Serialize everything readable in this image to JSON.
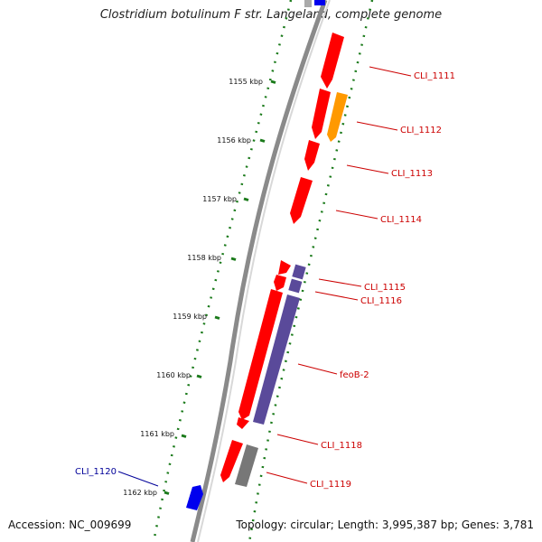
{
  "title": "Clostridium botulinum F str. Langeland, complete genome",
  "footer": {
    "accession": "Accession: NC_009699",
    "stats": "Topology: circular; Length: 3,995,387 bp; Genes: 3,781"
  },
  "colors": {
    "backbone": "#8a8a8a",
    "tick": "#1a7a1a",
    "forward_gene": "#ff0000",
    "orange_gene": "#ff9900",
    "purple_gene": "#5a4a9a",
    "gray_gene": "#777777",
    "blue_gene": "#0000ee",
    "label_red": "#cc0000",
    "label_blue": "#000099"
  },
  "kbp_markers": [
    {
      "label": "1155 kbp"
    },
    {
      "label": "1156 kbp"
    },
    {
      "label": "1157 kbp"
    },
    {
      "label": "1158 kbp"
    },
    {
      "label": "1159 kbp"
    },
    {
      "label": "1160 kbp"
    },
    {
      "label": "1161 kbp"
    },
    {
      "label": "1162 kbp"
    }
  ],
  "genes": [
    {
      "label": "CLI_1111",
      "color": "red"
    },
    {
      "label": "CLI_1112",
      "color": "orange"
    },
    {
      "label": "CLI_1113",
      "color": "red"
    },
    {
      "label": "CLI_1114",
      "color": "red"
    },
    {
      "label": "CLI_1115",
      "color": "purple"
    },
    {
      "label": "CLI_1116",
      "color": "purple"
    },
    {
      "label": "feoB-2",
      "color": "purple"
    },
    {
      "label": "CLI_1118",
      "color": "red"
    },
    {
      "label": "CLI_1119",
      "color": "gray"
    },
    {
      "label": "CLI_1120",
      "color": "blue"
    }
  ]
}
